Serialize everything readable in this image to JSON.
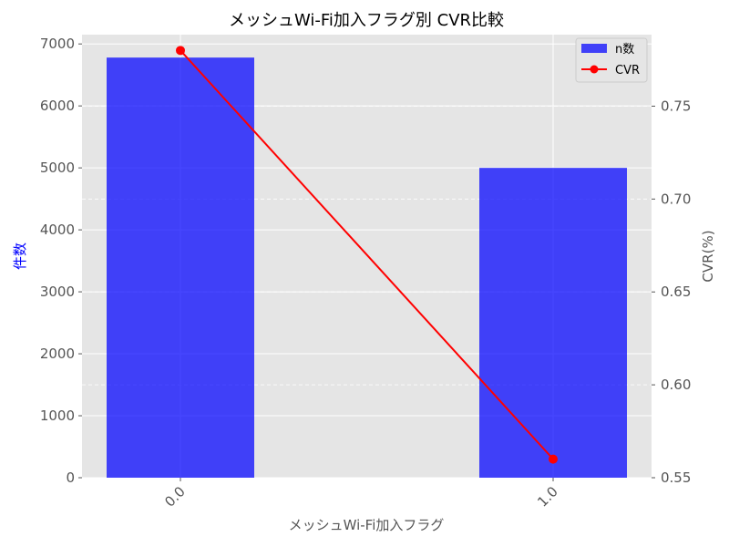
{
  "chart_data": {
    "type": "bar",
    "title": "メッシュWi-Fi加入フラグ別 CVR比較",
    "xlabel": "メッシュWi-Fi加入フラグ",
    "ylabel_left": "件数",
    "ylabel_right": "CVR(%)",
    "categories": [
      "0.0",
      "1.0"
    ],
    "series": [
      {
        "name": "n数",
        "type": "bar",
        "axis": "left",
        "values": [
          6780,
          5000
        ],
        "color": "#0000ff"
      },
      {
        "name": "CVR",
        "type": "line",
        "axis": "right",
        "values": [
          0.78,
          0.56
        ],
        "color": "#ff0000"
      }
    ],
    "ylim_left": [
      0,
      7150
    ],
    "ylim_right": [
      0.55,
      0.7885
    ],
    "yticks_left": [
      "0",
      "1000",
      "2000",
      "3000",
      "4000",
      "5000",
      "6000",
      "7000"
    ],
    "yticks_right": [
      "0.55",
      "0.60",
      "0.65",
      "0.70",
      "0.75"
    ],
    "grid": true,
    "legend_position": "top-right",
    "colors": {
      "background": "#e5e5e5",
      "left_label": "#0000ff"
    }
  }
}
